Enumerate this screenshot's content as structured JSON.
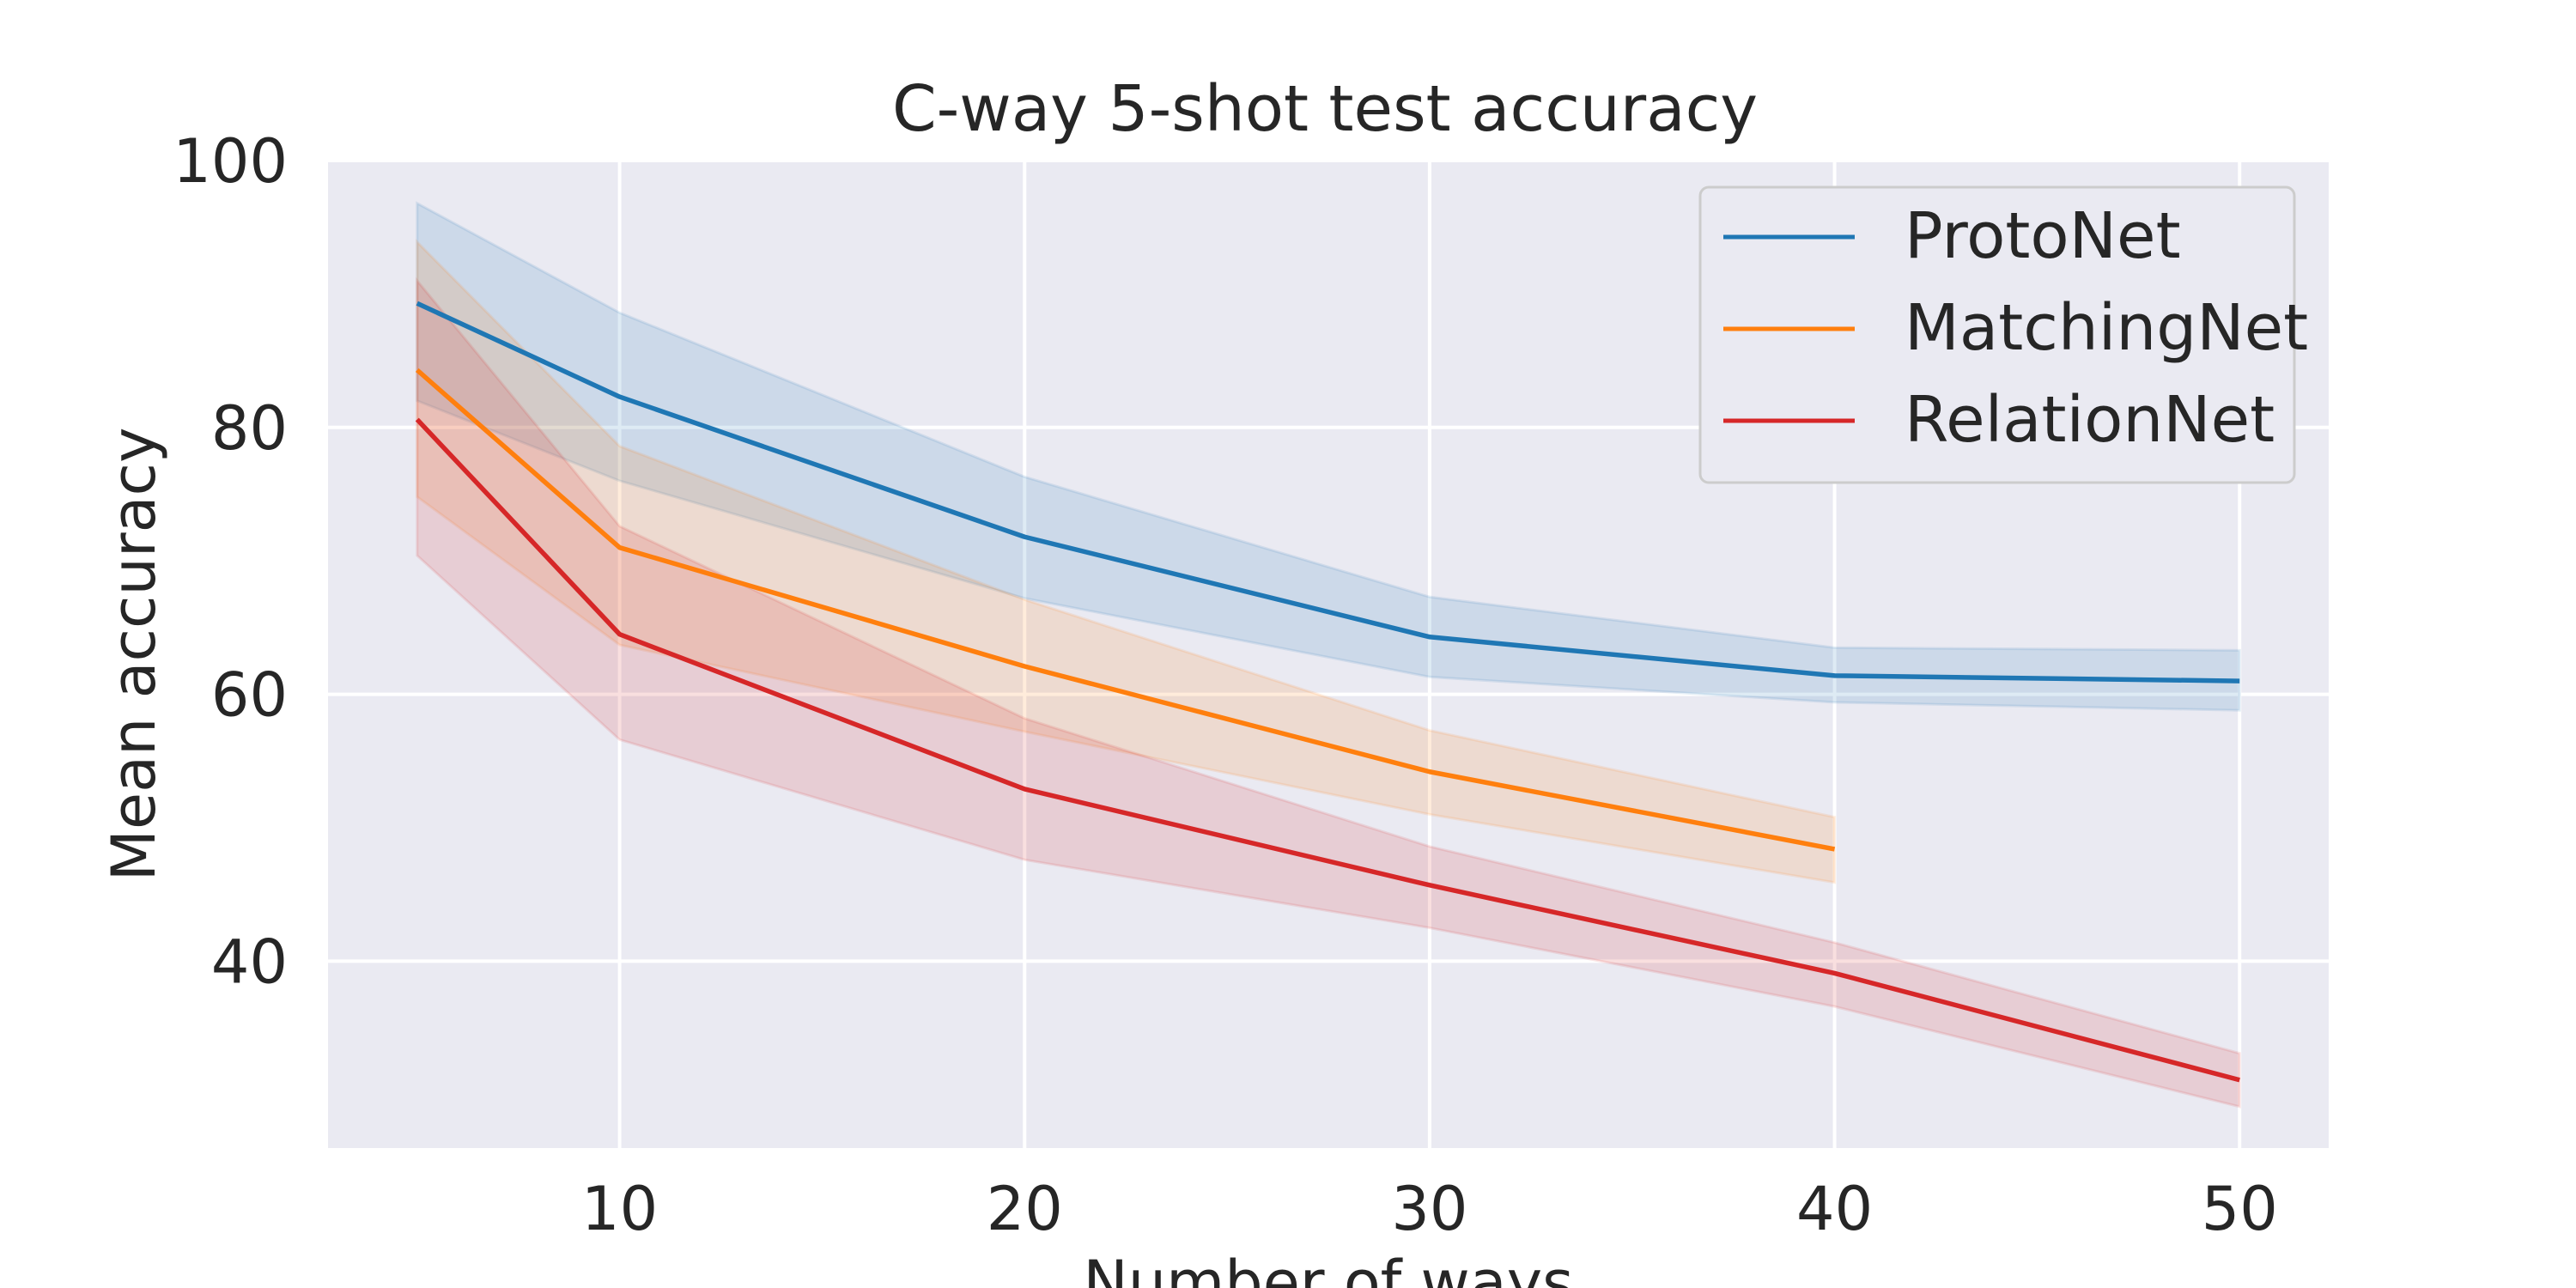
{
  "chart_data": {
    "type": "line",
    "title": "C-way 5-shot test accuracy",
    "xlabel": "Number of ways",
    "ylabel": "Mean accuracy",
    "xlim": [
      2.8,
      52.2
    ],
    "ylim": [
      26,
      100
    ],
    "xticks": [
      10,
      20,
      30,
      40,
      50
    ],
    "yticks": [
      40,
      60,
      80,
      100
    ],
    "grid": true,
    "legend": "top-right",
    "series": [
      {
        "name": "ProtoNet",
        "color": "#1f77b4",
        "x": [
          5,
          10,
          20,
          30,
          40,
          50
        ],
        "y": [
          89.3,
          82.3,
          71.8,
          64.3,
          61.4,
          61.0
        ],
        "lower": [
          82.0,
          76.0,
          67.2,
          61.3,
          59.4,
          58.8
        ],
        "upper": [
          96.8,
          88.6,
          76.3,
          67.3,
          63.5,
          63.3
        ]
      },
      {
        "name": "MatchingNet",
        "color": "#ff7f0e",
        "x": [
          5,
          10,
          20,
          30,
          40
        ],
        "y": [
          84.3,
          71.0,
          62.1,
          54.2,
          48.4
        ],
        "lower": [
          74.8,
          63.7,
          57.2,
          51.0,
          45.9
        ],
        "upper": [
          93.9,
          78.6,
          67.1,
          57.3,
          50.8
        ]
      },
      {
        "name": "RelationNet",
        "color": "#d62728",
        "x": [
          5,
          10,
          20,
          30,
          40,
          50
        ],
        "y": [
          80.6,
          64.5,
          52.9,
          45.7,
          39.1,
          31.1
        ],
        "lower": [
          70.4,
          56.6,
          47.6,
          42.5,
          36.6,
          29.1
        ],
        "upper": [
          91.0,
          72.6,
          58.2,
          48.6,
          41.4,
          33.1
        ]
      }
    ]
  }
}
